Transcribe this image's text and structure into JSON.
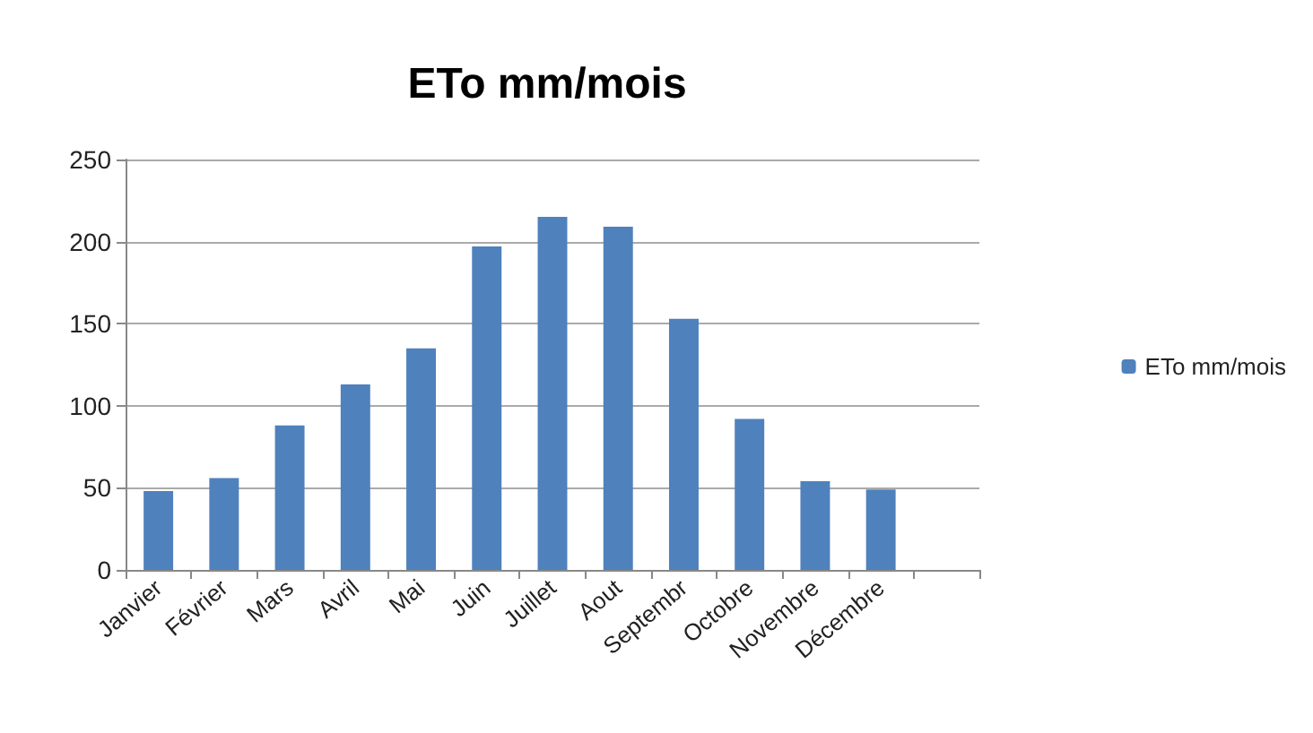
{
  "chart_data": {
    "type": "bar",
    "title": "ETo mm/mois",
    "categories": [
      "Janvier",
      "Février",
      "Mars",
      "Avril",
      "Mai",
      "Juin",
      "Juillet",
      "Aout",
      "Septembr",
      "Octobre",
      "Novembre",
      "Décembre",
      null
    ],
    "series": [
      {
        "name": "ETo mm/mois",
        "color": "#4f81bd",
        "values": [
          48,
          56,
          88,
          113,
          135,
          197,
          215,
          209,
          153,
          92,
          54,
          49,
          null
        ]
      }
    ],
    "ylim": [
      0,
      250
    ],
    "yticks": [
      0,
      50,
      100,
      150,
      200,
      250
    ],
    "grid": "y",
    "legend": "right"
  }
}
